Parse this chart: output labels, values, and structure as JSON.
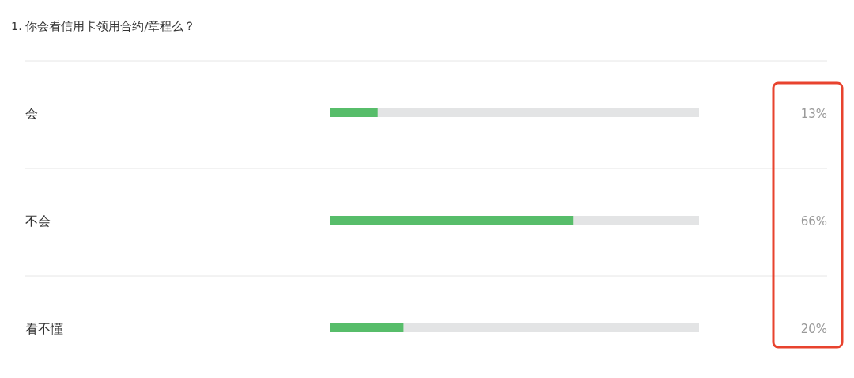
{
  "chart_data": {
    "type": "bar",
    "orientation": "horizontal",
    "title": "1. 你会看信用卡领用合约/章程么？",
    "categories": [
      "会",
      "不会",
      "看不懂"
    ],
    "values": [
      13,
      66,
      20
    ],
    "value_labels": [
      "13%",
      "66%",
      "20%"
    ],
    "color": "#57bd6a",
    "xlim": [
      0,
      100
    ]
  }
}
